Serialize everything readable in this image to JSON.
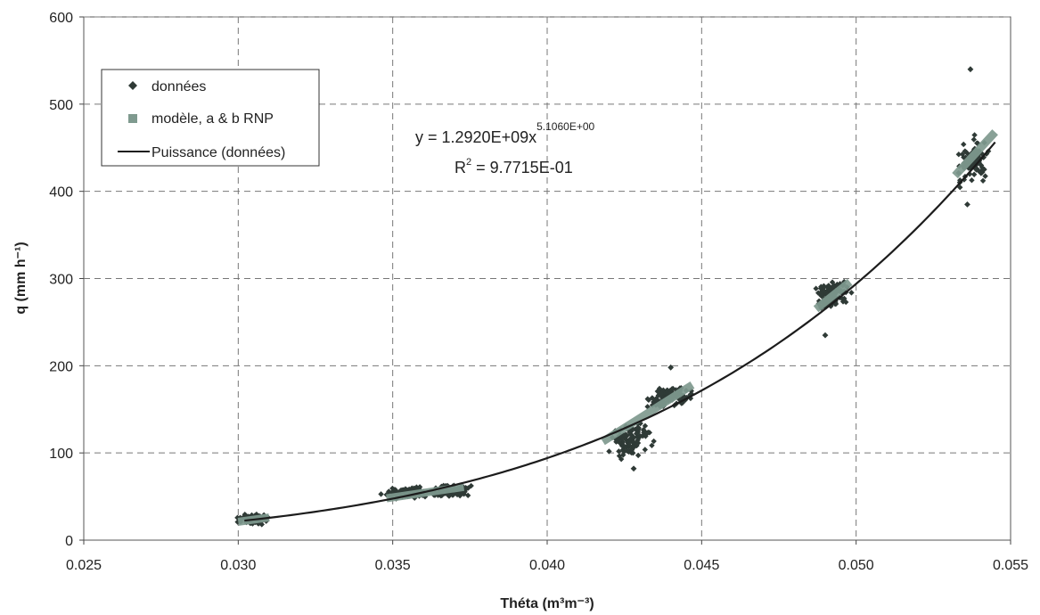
{
  "chart_data": {
    "type": "scatter",
    "xlabel": "Théta (m³m⁻³)",
    "ylabel": "q (mm h⁻¹)",
    "xlim": [
      0.025,
      0.055
    ],
    "ylim": [
      0,
      600
    ],
    "x_ticks": [
      "0.025",
      "0.030",
      "0.035",
      "0.040",
      "0.045",
      "0.050",
      "0.055"
    ],
    "y_ticks": [
      "0",
      "100",
      "200",
      "300",
      "400",
      "500",
      "600"
    ],
    "grid": true,
    "legend_placement": "top-left",
    "series": [
      {
        "name": "données",
        "marker": "diamond",
        "color": "#2f3a36",
        "clusters": [
          {
            "x": 0.0305,
            "y": 24,
            "x_spread": 0.0004,
            "y_spread": 5
          },
          {
            "x": 0.0355,
            "y": 54,
            "x_spread": 0.0007,
            "y_spread": 5
          },
          {
            "x": 0.0368,
            "y": 56,
            "x_spread": 0.0006,
            "y_spread": 6
          },
          {
            "x": 0.0427,
            "y": 115,
            "x_spread": 0.0006,
            "y_spread": 18
          },
          {
            "x": 0.044,
            "y": 165,
            "x_spread": 0.0006,
            "y_spread": 12
          },
          {
            "x": 0.0492,
            "y": 280,
            "x_spread": 0.0005,
            "y_spread": 16
          },
          {
            "x": 0.0538,
            "y": 435,
            "x_spread": 0.0005,
            "y_spread": 20
          }
        ],
        "outliers": [
          {
            "x": 0.0537,
            "y": 540
          },
          {
            "x": 0.0536,
            "y": 385
          },
          {
            "x": 0.049,
            "y": 235
          },
          {
            "x": 0.0428,
            "y": 82
          },
          {
            "x": 0.044,
            "y": 198
          }
        ]
      },
      {
        "name": "modèle, a & b RNP",
        "marker": "square",
        "color": "#7f9a8f",
        "segments": [
          {
            "x": [
              0.03,
              0.031
            ],
            "y": [
              21,
              26
            ]
          },
          {
            "x": [
              0.0348,
              0.0373
            ],
            "y": [
              48,
              61
            ]
          },
          {
            "x": [
              0.0418,
              0.0447
            ],
            "y": [
              113,
              178
            ]
          },
          {
            "x": [
              0.0487,
              0.0498
            ],
            "y": [
              265,
              296
            ]
          },
          {
            "x": [
              0.0532,
              0.0545
            ],
            "y": [
              418,
              468
            ]
          }
        ]
      },
      {
        "name": "Puissance (données)",
        "type": "line",
        "color": "#1c1c1c",
        "fit": {
          "a": 1292000000,
          "b": 5.106,
          "x_range": [
            0.0302,
            0.0545
          ]
        }
      }
    ],
    "annotations": {
      "equation_prefix": "y = 1.2920E+09x",
      "equation_exponent": "5.1060E+00",
      "r2_prefix": "R",
      "r2_sup": "2",
      "r2_value": " = 9.7715E-01"
    }
  }
}
